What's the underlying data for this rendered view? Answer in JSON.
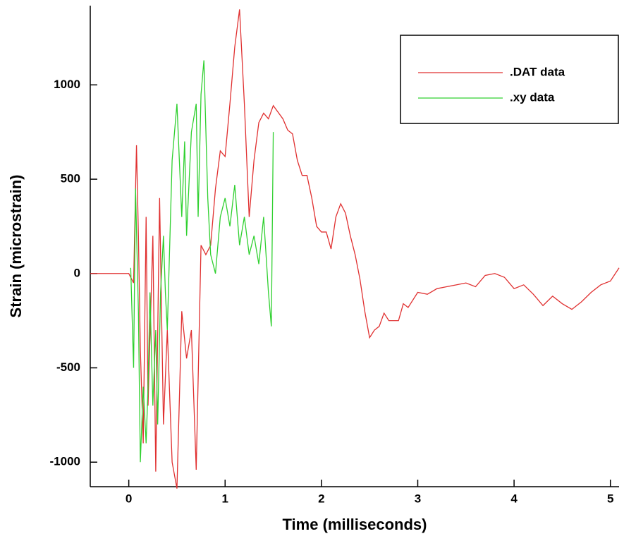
{
  "chart_data": {
    "type": "line",
    "x_label": "Time (milliseconds)",
    "y_label": "Strain (microstrain)",
    "xlim": [
      -0.4,
      5.09
    ],
    "ylim": [
      -1130,
      1420
    ],
    "xticks": [
      0,
      1,
      2,
      3,
      4,
      5
    ],
    "yticks": [
      -1000,
      -500,
      0,
      500,
      1000
    ],
    "legend": "upper right",
    "series": [
      {
        "name": ".DAT data",
        "color": "#e03030",
        "x": [
          -0.4,
          0,
          0.05,
          0.08,
          0.1,
          0.12,
          0.15,
          0.18,
          0.2,
          0.25,
          0.28,
          0.32,
          0.36,
          0.4,
          0.45,
          0.5,
          0.55,
          0.6,
          0.65,
          0.7,
          0.75,
          0.8,
          0.85,
          0.9,
          0.95,
          1.0,
          1.05,
          1.1,
          1.15,
          1.2,
          1.25,
          1.3,
          1.35,
          1.4,
          1.45,
          1.5,
          1.6,
          1.65,
          1.7,
          1.75,
          1.8,
          1.85,
          1.9,
          1.95,
          2.0,
          2.05,
          2.1,
          2.15,
          2.2,
          2.25,
          2.3,
          2.35,
          2.4,
          2.45,
          2.5,
          2.55,
          2.6,
          2.65,
          2.7,
          2.8,
          2.85,
          2.9,
          3.0,
          3.1,
          3.2,
          3.4,
          3.5,
          3.6,
          3.7,
          3.8,
          3.9,
          4.0,
          4.1,
          4.2,
          4.3,
          4.4,
          4.5,
          4.6,
          4.7,
          4.8,
          4.9,
          5.0,
          5.09
        ],
        "values": [
          0,
          0,
          -50,
          680,
          200,
          -400,
          -900,
          300,
          -700,
          200,
          -1050,
          400,
          -800,
          -300,
          -1000,
          -1140,
          -200,
          -450,
          -300,
          -1040,
          150,
          100,
          150,
          450,
          650,
          620,
          900,
          1200,
          1400,
          900,
          300,
          600,
          800,
          850,
          820,
          890,
          820,
          760,
          740,
          600,
          520,
          520,
          400,
          250,
          220,
          220,
          130,
          300,
          370,
          320,
          200,
          100,
          -30,
          -200,
          -340,
          -300,
          -280,
          -210,
          -250,
          -250,
          -160,
          -180,
          -100,
          -110,
          -80,
          -60,
          -50,
          -70,
          -10,
          0,
          -20,
          -80,
          -60,
          -110,
          -170,
          -120,
          -160,
          -190,
          -150,
          -100,
          -60,
          -40,
          30
        ]
      },
      {
        "name": ".xy data",
        "color": "#30d030",
        "x": [
          0.02,
          0.05,
          0.07,
          0.1,
          0.12,
          0.15,
          0.18,
          0.2,
          0.22,
          0.25,
          0.28,
          0.3,
          0.33,
          0.36,
          0.38,
          0.4,
          0.45,
          0.5,
          0.55,
          0.58,
          0.6,
          0.65,
          0.7,
          0.72,
          0.75,
          0.78,
          0.82,
          0.85,
          0.9,
          0.95,
          1.0,
          1.05,
          1.1,
          1.15,
          1.2,
          1.25,
          1.3,
          1.35,
          1.4,
          1.45,
          1.48,
          1.5
        ],
        "values": [
          30,
          -500,
          450,
          -200,
          -1000,
          -600,
          -900,
          -600,
          -100,
          -700,
          -300,
          -800,
          -100,
          200,
          -100,
          -300,
          600,
          900,
          300,
          700,
          200,
          750,
          900,
          300,
          950,
          1130,
          400,
          100,
          0,
          300,
          400,
          250,
          470,
          150,
          300,
          100,
          200,
          50,
          300,
          -100,
          -280,
          750
        ]
      }
    ]
  }
}
